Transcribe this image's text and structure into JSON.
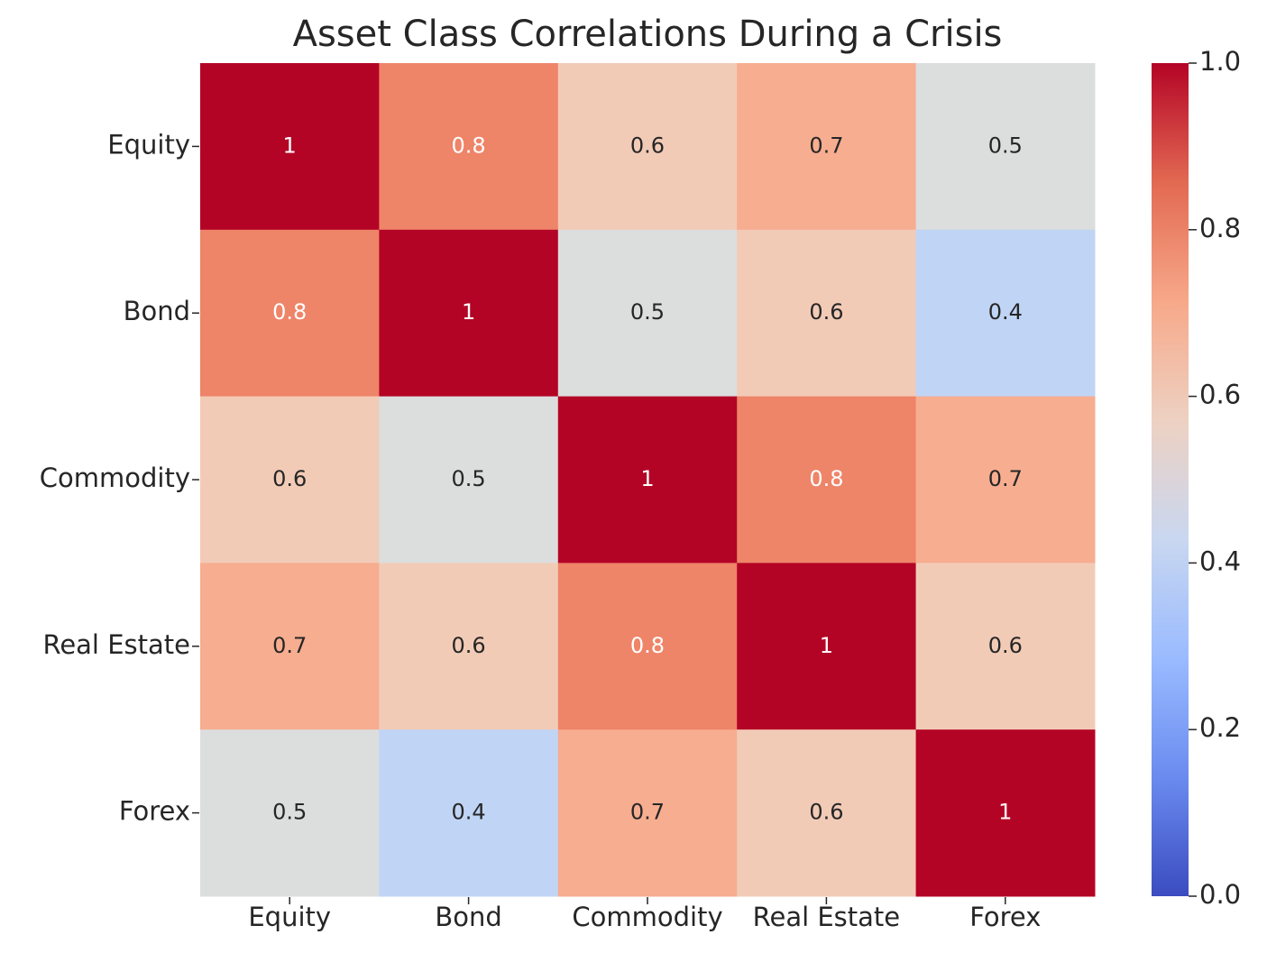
{
  "chart_data": {
    "type": "heatmap",
    "title": "Asset Class Correlations During a Crisis",
    "row_labels": [
      "Equity",
      "Bond",
      "Commodity",
      "Real Estate",
      "Forex"
    ],
    "col_labels": [
      "Equity",
      "Bond",
      "Commodity",
      "Real Estate",
      "Forex"
    ],
    "values": [
      [
        1,
        0.8,
        0.6,
        0.7,
        0.5
      ],
      [
        0.8,
        1,
        0.5,
        0.6,
        0.4
      ],
      [
        0.6,
        0.5,
        1,
        0.8,
        0.7
      ],
      [
        0.7,
        0.6,
        0.8,
        1,
        0.6
      ],
      [
        0.5,
        0.4,
        0.7,
        0.6,
        1
      ]
    ],
    "annotations": [
      [
        "1",
        "0.8",
        "0.6",
        "0.7",
        "0.5"
      ],
      [
        "0.8",
        "1",
        "0.5",
        "0.6",
        "0.4"
      ],
      [
        "0.6",
        "0.5",
        "1",
        "0.8",
        "0.7"
      ],
      [
        "0.7",
        "0.6",
        "0.8",
        "1",
        "0.6"
      ],
      [
        "0.5",
        "0.4",
        "0.7",
        "0.6",
        "1"
      ]
    ],
    "colormap": "coolwarm",
    "vmin": 0,
    "vmax": 1,
    "colorbar": {
      "ticks": [
        0.0,
        0.2,
        0.4,
        0.6,
        0.8,
        1.0
      ],
      "tick_labels": [
        "0.0",
        "0.2",
        "0.4",
        "0.6",
        "0.8",
        "1.0"
      ]
    },
    "colors": {
      "0.4": "#c0d4f5",
      "0.5": "#dcdddd",
      "0.6": "#f2cbb7",
      "0.7": "#f7ad90",
      "0.8": "#ee8468",
      "1": "#b40426",
      "cbar_stops": [
        "#3b4cc0",
        "#6a8bef",
        "#9abbff",
        "#c9d7f0",
        "#edd1c2",
        "#f7a889",
        "#e26952",
        "#b40426"
      ]
    }
  }
}
